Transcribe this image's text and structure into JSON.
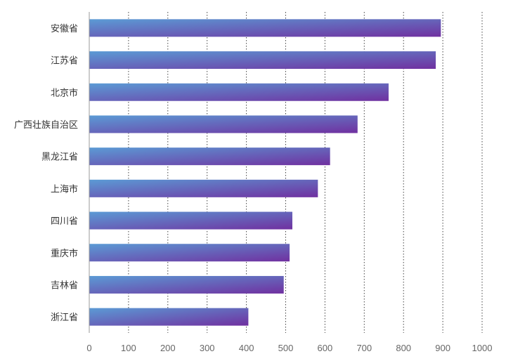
{
  "chart_data": {
    "type": "bar",
    "orientation": "horizontal",
    "categories": [
      "安徽省",
      "江苏省",
      "北京市",
      "广西壮族自治区",
      "黑龙江省",
      "上海市",
      "四川省",
      "重庆市",
      "吉林省",
      "浙江省"
    ],
    "values": [
      895,
      882,
      762,
      683,
      613,
      582,
      517,
      510,
      495,
      405
    ],
    "xlim": [
      0,
      1000
    ],
    "xticks": [
      "0",
      "100",
      "200",
      "300",
      "400",
      "500",
      "600",
      "700",
      "800",
      "900",
      "1000"
    ],
    "grid": "vertical-dotted",
    "colors": {
      "bar_start": "#5b9bd5",
      "bar_end": "#7030a0",
      "axis": "#999999",
      "grid": "#444444"
    }
  }
}
